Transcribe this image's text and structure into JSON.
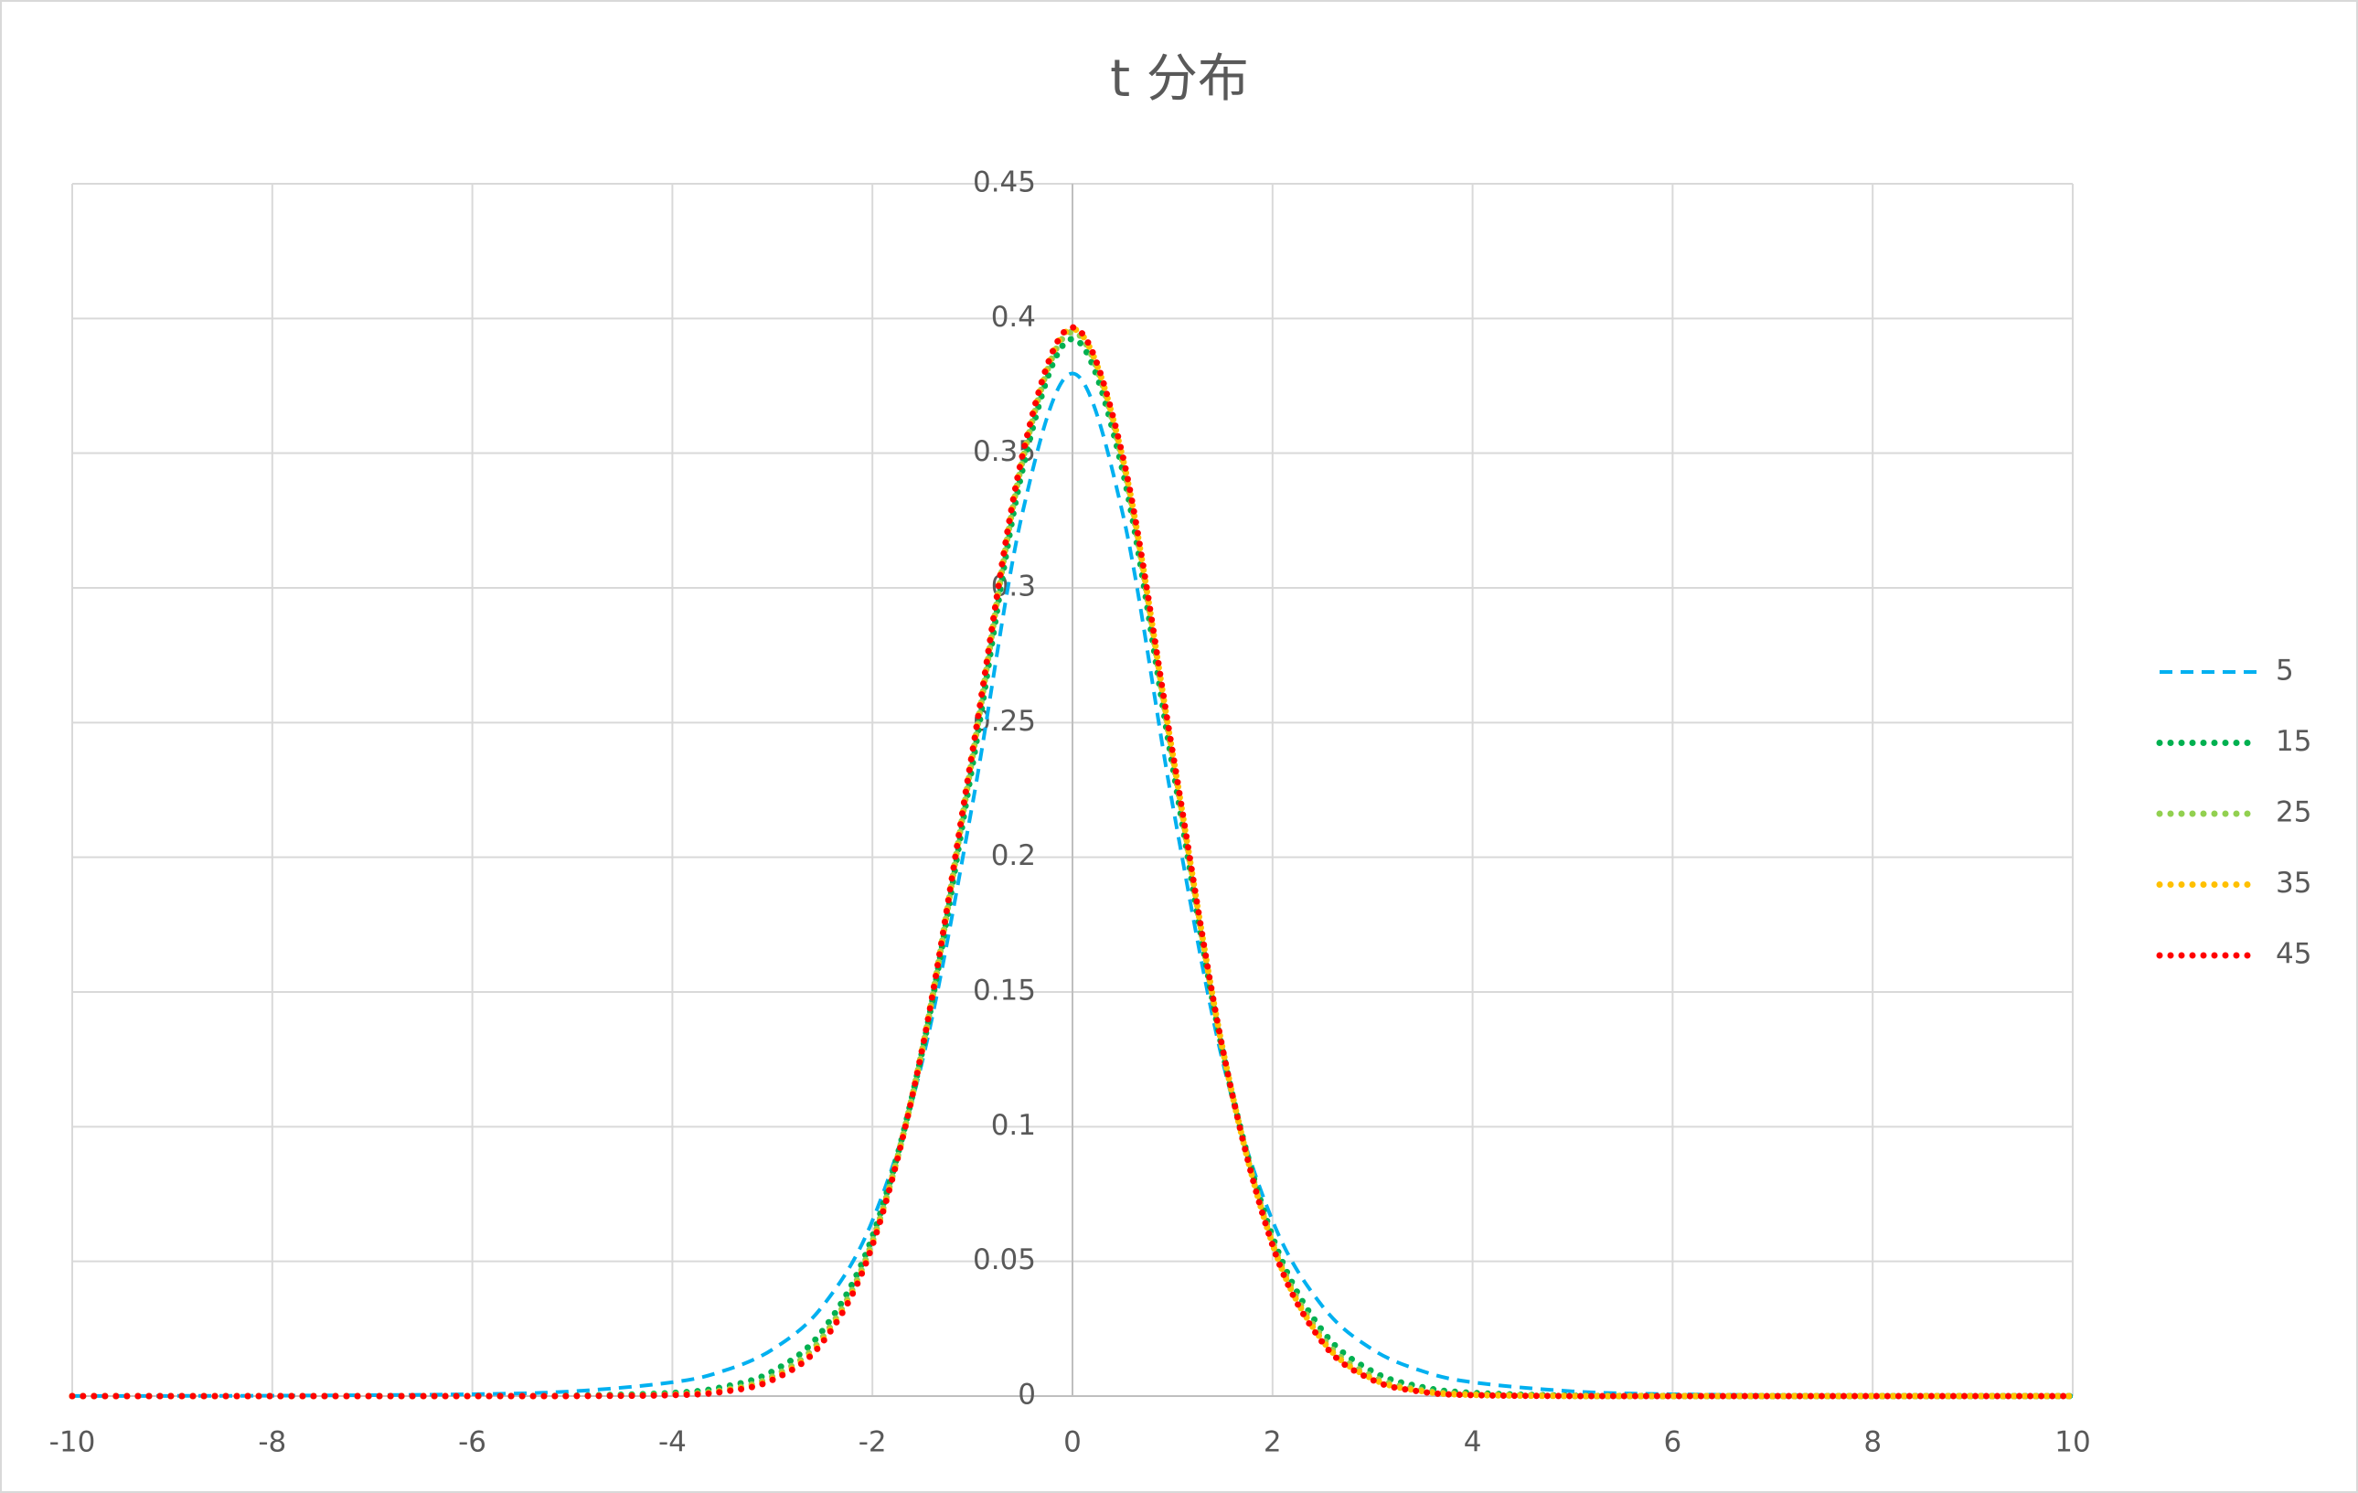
{
  "chart_data": {
    "type": "line",
    "title": "t 分布",
    "x": [
      -10,
      -8,
      -6,
      -5,
      -4,
      -3.5,
      -3,
      -2.5,
      -2,
      -1.5,
      -1,
      -0.5,
      0,
      0.5,
      1,
      1.5,
      2,
      2.5,
      3,
      3.5,
      4,
      5,
      6,
      8,
      10
    ],
    "series": [
      {
        "name": "5",
        "color": "#00b0f0",
        "dash": "dashed",
        "values": [
          4.1e-05,
          0.000145,
          0.00069,
          0.00176,
          0.00512,
          0.00924,
          0.0173,
          0.0333,
          0.0651,
          0.1245,
          0.2197,
          0.3279,
          0.3796,
          0.3279,
          0.2197,
          0.1245,
          0.0651,
          0.0333,
          0.0173,
          0.00924,
          0.00512,
          0.00176,
          0.00069,
          0.000145,
          4.1e-05
        ]
      },
      {
        "name": "15",
        "color": "#00b050",
        "dash": "dotted",
        "values": [
          0,
          7e-07,
          2.19e-05,
          0.000153,
          0.00118,
          0.00331,
          0.00913,
          0.0242,
          0.0592,
          0.1283,
          0.2341,
          0.3438,
          0.3924,
          0.3438,
          0.2341,
          0.1283,
          0.0592,
          0.0242,
          0.00913,
          0.00331,
          0.00118,
          0.000153,
          2.19e-05,
          7e-07,
          0
        ]
      },
      {
        "name": "25",
        "color": "#92d050",
        "dash": "dotted",
        "values": [
          0,
          0,
          3.6e-06,
          4.82e-05,
          0.000637,
          0.00221,
          0.00726,
          0.0217,
          0.0574,
          0.1288,
          0.2372,
          0.3471,
          0.395,
          0.3471,
          0.2372,
          0.1288,
          0.0574,
          0.0217,
          0.00726,
          0.00221,
          0.000637,
          4.82e-05,
          3.6e-06,
          0,
          0
        ]
      },
      {
        "name": "35",
        "color": "#ffc000",
        "dash": "dotted",
        "values": [
          0,
          0,
          1.2e-06,
          2.42e-05,
          0.000452,
          0.00179,
          0.00644,
          0.0206,
          0.0565,
          0.1291,
          0.2386,
          0.3485,
          0.3961,
          0.3485,
          0.2386,
          0.1291,
          0.0565,
          0.0206,
          0.00644,
          0.00179,
          0.000452,
          2.42e-05,
          1.2e-06,
          0,
          0
        ]
      },
      {
        "name": "45",
        "color": "#ff0000",
        "dash": "dotted",
        "values": [
          0,
          0,
          5e-07,
          1.53e-05,
          0.000363,
          0.00156,
          0.00599,
          0.0199,
          0.056,
          0.1292,
          0.2393,
          0.3493,
          0.3967,
          0.3493,
          0.2393,
          0.1292,
          0.056,
          0.0199,
          0.00599,
          0.00156,
          0.000363,
          1.53e-05,
          5e-07,
          0,
          0
        ]
      }
    ],
    "xlim": [
      -10,
      10
    ],
    "xticks": [
      -10,
      -8,
      -6,
      -4,
      -2,
      0,
      2,
      4,
      6,
      8,
      10
    ],
    "ylim": [
      0,
      0.45
    ],
    "yticks": [
      0,
      0.05,
      0.1,
      0.15,
      0.2,
      0.25,
      0.3,
      0.35,
      0.4,
      0.45
    ],
    "grid": true,
    "legend": "right"
  }
}
